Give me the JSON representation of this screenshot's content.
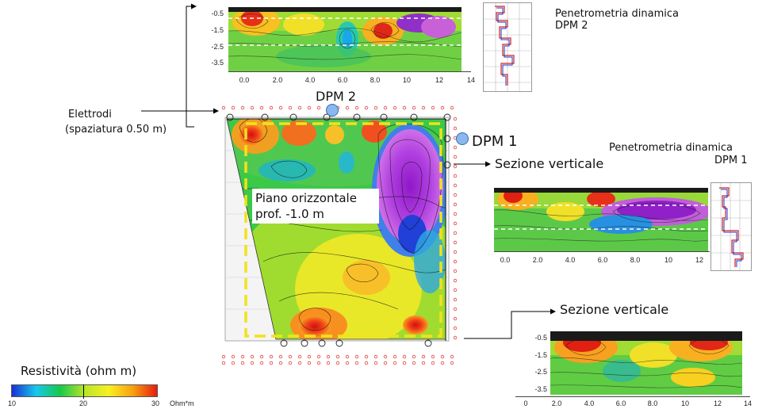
{
  "labels": {
    "electrodes_line1": "Elettrodi",
    "electrodes_line2": "(spaziatura 0.50 m)",
    "dpm2": "DPM 2",
    "dpm1": "DPM 1",
    "section_right": "Sezione verticale",
    "section_bottom": "Sezione verticale",
    "pen_top_line1": "Penetrometria dinamica",
    "pen_top_line2": "DPM 2",
    "pen_mid_line1": "Penetrometria dinamica",
    "pen_mid_line2": "DPM 1",
    "plane_line1": "Piano orizzontale",
    "plane_line2": "prof. -1.0 m"
  },
  "legend": {
    "title": "Resistività (ohm m)",
    "min": "10",
    "mid": "20",
    "max": "30",
    "unit": "Ohm*m",
    "colors": [
      "#1a2fd6",
      "#18c8ec",
      "#18c84a",
      "#b8e628",
      "#f8f020",
      "#f8a010",
      "#e81a10"
    ]
  },
  "sections": {
    "top": {
      "y_ticks": [
        "-0.5",
        "-1.5",
        "-2.5",
        "-3.5"
      ],
      "x_ticks": [
        "0.0",
        "2.0",
        "4.0",
        "6.0",
        "8.0",
        "10",
        "12",
        "14"
      ]
    },
    "middle": {
      "x_ticks": [
        "0.0",
        "2.0",
        "4.0",
        "6.0",
        "8.0",
        "10",
        "12"
      ]
    },
    "bottom": {
      "y_ticks": [
        "-0.5",
        "-1.5",
        "-2.5",
        "-3.5"
      ],
      "x_ticks": [
        "0",
        "2.0",
        "4.0",
        "6.0",
        "8.0",
        "10",
        "12",
        "14"
      ]
    }
  },
  "colors": {
    "dashed_box": "#f2e21a",
    "electrode": "#e04040",
    "dpm_marker": "#88b8ee"
  }
}
